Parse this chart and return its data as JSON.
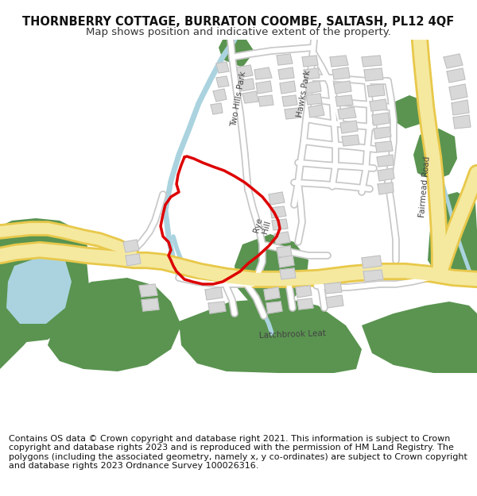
{
  "title_line1": "THORNBERRY COTTAGE, BURRATON COOMBE, SALTASH, PL12 4QF",
  "title_line2": "Map shows position and indicative extent of the property.",
  "title_fontsize": 10.5,
  "subtitle_fontsize": 9.5,
  "copyright_lines": "Contains OS data © Crown copyright and database right 2021. This information is subject to Crown copyright and database rights 2023 and is reproduced with the permission of HM Land Registry. The polygons (including the associated geometry, namely x, y co-ordinates) are subject to Crown copyright and database rights 2023 Ordnance Survey 100026316.",
  "copyright_fontsize": 8,
  "bg_color": "#ffffff",
  "map_bg": "#ffffff",
  "green_color": "#5a9450",
  "water_color": "#aad3df",
  "road_main_fill": "#f5e9a0",
  "road_main_edge": "#e8c84a",
  "road_minor_fill": "#ffffff",
  "road_minor_edge": "#c8c8c8",
  "building_color": "#d8d8d8",
  "building_edge": "#b8b8b8",
  "red_outline_color": "#dd0000",
  "label_color": "#444444",
  "label_fontsize": 7.5
}
